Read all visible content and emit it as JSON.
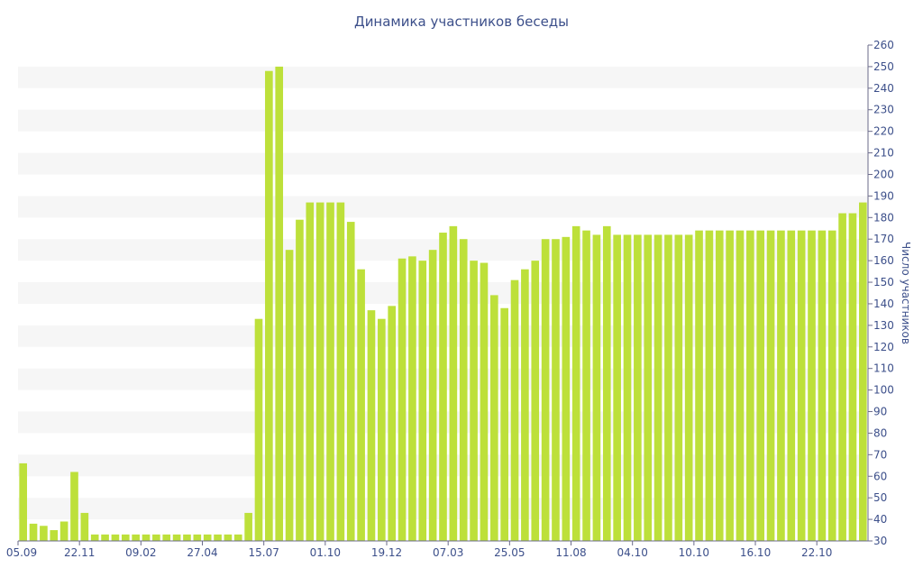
{
  "chart_data": {
    "type": "bar",
    "title": "Динамика участников беседы",
    "xlabel": "",
    "ylabel": "Число участников",
    "ylim": [
      30,
      260
    ],
    "y_ticks": [
      30,
      40,
      50,
      60,
      70,
      80,
      90,
      100,
      110,
      120,
      130,
      140,
      150,
      160,
      170,
      180,
      190,
      200,
      210,
      220,
      230,
      240,
      250,
      260
    ],
    "x_tick_labels": [
      "05.09",
      "22.11",
      "09.02",
      "27.04",
      "15.07",
      "01.10",
      "19.12",
      "07.03",
      "25.05",
      "11.08",
      "04.10",
      "10.10",
      "16.10",
      "22.10"
    ],
    "grid": "horizontal bands",
    "colors": {
      "bar": "#bde03a",
      "band": "#f6f6f6",
      "text": "#3c4f8a",
      "axis": "#6b6b8a"
    },
    "values": [
      66,
      38,
      37,
      35,
      39,
      62,
      43,
      33,
      33,
      33,
      33,
      33,
      33,
      33,
      33,
      33,
      33,
      33,
      33,
      33,
      33,
      33,
      43,
      133,
      248,
      250,
      165,
      179,
      187,
      187,
      187,
      187,
      178,
      156,
      137,
      133,
      139,
      161,
      162,
      160,
      165,
      173,
      176,
      170,
      160,
      159,
      144,
      138,
      151,
      156,
      160,
      170,
      170,
      171,
      176,
      174,
      172,
      176,
      172,
      172,
      172,
      172,
      172,
      172,
      172,
      172,
      174,
      174,
      174,
      174,
      174,
      174,
      174,
      174,
      174,
      174,
      174,
      174,
      174,
      174,
      182,
      182,
      187
    ]
  }
}
